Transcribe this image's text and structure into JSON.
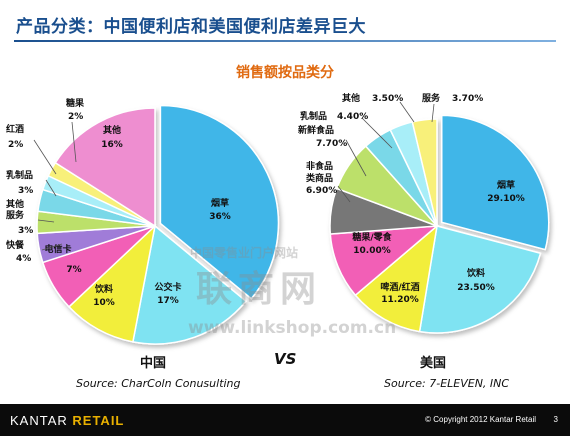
{
  "page": {
    "title": "产品分类：中国便利店和美国便利店差异巨大",
    "subtitle": "销售额按品类分",
    "vs_label": "VS"
  },
  "watermark": {
    "line1": "中国零售业门户网站",
    "line2": "联商网",
    "line3": "www.linkshop.com.cn"
  },
  "footer": {
    "brand_first": "KANTAR",
    "brand_second": "RETAIL",
    "copyright": "© Copyright 2012 Kantar Retail",
    "page_number": "3"
  },
  "chart_data": [
    {
      "type": "pie",
      "country": "中国",
      "source": "Source: CharColn Conusulting",
      "slices": [
        {
          "label": "烟草",
          "value": 36,
          "value_label": "36%",
          "color": "#3fb6e8"
        },
        {
          "label": "公交卡",
          "value": 17,
          "value_label": "17%",
          "color": "#7fe3f2"
        },
        {
          "label": "饮料",
          "value": 10,
          "value_label": "10%",
          "color": "#f2ee3a"
        },
        {
          "label": "电信卡",
          "value": 7,
          "value_label": "7%",
          "color": "#f25fb6"
        },
        {
          "label": "快餐",
          "value": 4,
          "value_label": "4%",
          "color": "#a07cd8"
        },
        {
          "label": "其他服务",
          "value": 3,
          "value_label": "3%",
          "color": "#bce06a"
        },
        {
          "label": "乳制品",
          "value": 3,
          "value_label": "3%",
          "color": "#7ad8e8"
        },
        {
          "label": "红酒",
          "value": 2,
          "value_label": "2%",
          "color": "#a8eef8"
        },
        {
          "label": "糖果",
          "value": 2,
          "value_label": "2%",
          "color": "#f8f07a"
        },
        {
          "label": "其他",
          "value": 16,
          "value_label": "16%",
          "color": "#ee8ed0"
        }
      ]
    },
    {
      "type": "pie",
      "country": "美国",
      "source": "Source: 7-ELEVEN, INC",
      "slices": [
        {
          "label": "烟草",
          "value": 29.1,
          "value_label": "29.10%",
          "color": "#3fb6e8"
        },
        {
          "label": "饮料",
          "value": 23.5,
          "value_label": "23.50%",
          "color": "#7fe3f2"
        },
        {
          "label": "啤酒/红酒",
          "value": 11.2,
          "value_label": "11.20%",
          "color": "#f2ee3a"
        },
        {
          "label": "糖果/零食",
          "value": 10.0,
          "value_label": "10.00%",
          "color": "#f25fb6"
        },
        {
          "label": "非食品类商品",
          "value": 6.9,
          "value_label": "6.90%",
          "color": "#777777"
        },
        {
          "label": "新鲜食品",
          "value": 7.7,
          "value_label": "7.70%",
          "color": "#bce06a"
        },
        {
          "label": "乳制品",
          "value": 4.4,
          "value_label": "4.40%",
          "color": "#7ad8e8"
        },
        {
          "label": "其他",
          "value": 3.5,
          "value_label": "3.50%",
          "color": "#a8eef8"
        },
        {
          "label": "服务",
          "value": 3.7,
          "value_label": "3.70%",
          "color": "#f8f07a"
        }
      ]
    }
  ]
}
